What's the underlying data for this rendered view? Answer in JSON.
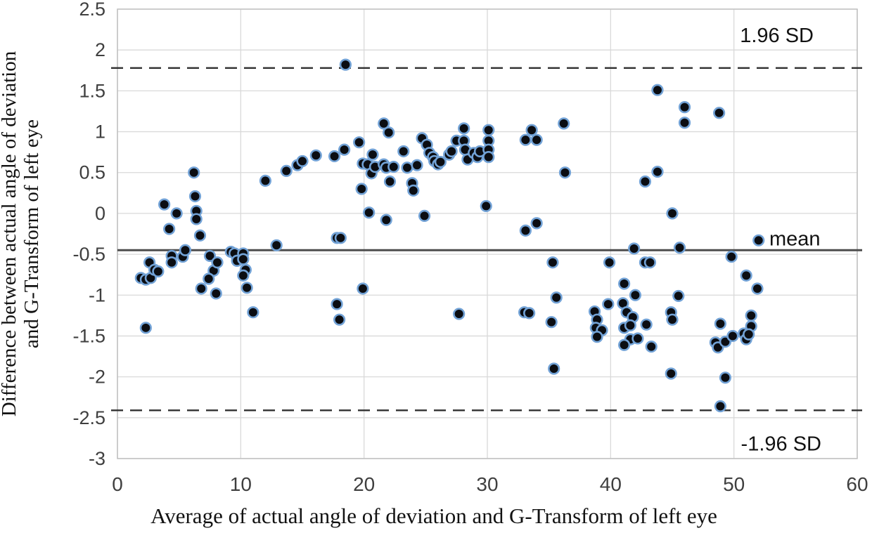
{
  "chart_data": {
    "type": "scatter",
    "title": "",
    "xlabel": "Average of actual angle of deviation and G-Transform of left eye",
    "ylabel": "Difference between actual angle of deviation and G-Transform of left eye",
    "ylabel_line1": "Difference between actual angle of deviation",
    "ylabel_line2": "and G-Transform of left eye",
    "xlim": [
      0,
      60
    ],
    "ylim": [
      -3,
      2.5
    ],
    "x_ticks": [
      0,
      10,
      20,
      30,
      40,
      50,
      60
    ],
    "y_ticks": [
      2.5,
      2,
      1.5,
      1,
      0.5,
      0,
      -0.5,
      -1,
      -1.5,
      -2,
      -2.5,
      -3
    ],
    "grid": true,
    "legend": "none",
    "colors": {
      "marker_fill": "#0b0d12",
      "marker_stroke": "#72a2d6",
      "gridline": "#d9d9d9",
      "plot_border": "#bfbfbf",
      "mean_line": "#4d4d4d",
      "loa_line": "#303030",
      "tick_text": "#3f3f3f",
      "label_text": "#121212"
    },
    "reference_lines": [
      {
        "label": "1.96 SD",
        "value": 1.78,
        "style": "dashed"
      },
      {
        "label": "mean",
        "value": -0.45,
        "style": "solid"
      },
      {
        "label": "-1.96 SD",
        "value": -2.41,
        "style": "dashed"
      }
    ],
    "points": [
      [
        1.9,
        -0.79
      ],
      [
        2.3,
        -0.81
      ],
      [
        2.7,
        -0.79
      ],
      [
        2.3,
        -1.4
      ],
      [
        2.6,
        -0.6
      ],
      [
        3.0,
        -0.69
      ],
      [
        3.3,
        -0.71
      ],
      [
        3.8,
        0.11
      ],
      [
        4.2,
        -0.19
      ],
      [
        4.4,
        -0.52
      ],
      [
        4.4,
        -0.6
      ],
      [
        4.8,
        0.0
      ],
      [
        5.3,
        -0.53
      ],
      [
        5.5,
        -0.45
      ],
      [
        6.2,
        0.5
      ],
      [
        6.3,
        0.21
      ],
      [
        6.4,
        0.03
      ],
      [
        6.4,
        -0.07
      ],
      [
        6.7,
        -0.27
      ],
      [
        6.8,
        -0.92
      ],
      [
        7.5,
        -0.52
      ],
      [
        7.8,
        -0.7
      ],
      [
        7.4,
        -0.8
      ],
      [
        8.1,
        -0.6
      ],
      [
        8.0,
        -0.98
      ],
      [
        9.2,
        -0.47
      ],
      [
        9.5,
        -0.49
      ],
      [
        9.7,
        -0.58
      ],
      [
        10.2,
        -0.49
      ],
      [
        10.2,
        -0.56
      ],
      [
        10.4,
        -0.69
      ],
      [
        10.2,
        -0.76
      ],
      [
        10.5,
        -0.91
      ],
      [
        11.0,
        -1.21
      ],
      [
        12.0,
        0.4
      ],
      [
        12.9,
        -0.39
      ],
      [
        13.7,
        0.52
      ],
      [
        14.6,
        0.59
      ],
      [
        15.0,
        0.64
      ],
      [
        16.1,
        0.71
      ],
      [
        17.6,
        0.7
      ],
      [
        18.4,
        0.78
      ],
      [
        18.5,
        1.82
      ],
      [
        17.8,
        -0.3
      ],
      [
        18.1,
        -0.3
      ],
      [
        17.8,
        -1.11
      ],
      [
        18.0,
        -1.3
      ],
      [
        19.6,
        0.87
      ],
      [
        19.8,
        0.3
      ],
      [
        19.9,
        0.61
      ],
      [
        19.9,
        -0.92
      ],
      [
        20.3,
        0.6
      ],
      [
        20.6,
        0.49
      ],
      [
        20.7,
        0.72
      ],
      [
        20.9,
        0.57
      ],
      [
        20.4,
        0.01
      ],
      [
        21.6,
        0.6
      ],
      [
        21.6,
        1.1
      ],
      [
        21.8,
        0.56
      ],
      [
        22.0,
        0.99
      ],
      [
        22.1,
        0.39
      ],
      [
        22.4,
        0.57
      ],
      [
        21.8,
        -0.08
      ],
      [
        23.2,
        0.76
      ],
      [
        23.5,
        0.56
      ],
      [
        23.9,
        0.37
      ],
      [
        24.0,
        0.28
      ],
      [
        24.3,
        0.59
      ],
      [
        24.7,
        0.92
      ],
      [
        25.1,
        0.84
      ],
      [
        25.3,
        0.74
      ],
      [
        25.6,
        0.69
      ],
      [
        25.7,
        0.64
      ],
      [
        26.0,
        0.6
      ],
      [
        26.2,
        0.63
      ],
      [
        24.9,
        -0.03
      ],
      [
        26.9,
        0.72
      ],
      [
        27.1,
        0.76
      ],
      [
        27.5,
        0.89
      ],
      [
        27.7,
        -1.23
      ],
      [
        28.1,
        1.04
      ],
      [
        28.1,
        0.89
      ],
      [
        28.2,
        0.78
      ],
      [
        28.4,
        0.66
      ],
      [
        28.9,
        0.74
      ],
      [
        29.2,
        0.69
      ],
      [
        29.4,
        0.76
      ],
      [
        29.9,
        0.09
      ],
      [
        30.1,
        1.02
      ],
      [
        30.1,
        0.89
      ],
      [
        30.1,
        0.78
      ],
      [
        30.1,
        0.69
      ],
      [
        33.1,
        0.9
      ],
      [
        33.6,
        1.02
      ],
      [
        34.0,
        0.9
      ],
      [
        33.1,
        -0.21
      ],
      [
        34.0,
        -0.12
      ],
      [
        33.0,
        -1.21
      ],
      [
        33.4,
        -1.22
      ],
      [
        35.3,
        -0.6
      ],
      [
        35.6,
        -1.03
      ],
      [
        35.2,
        -1.33
      ],
      [
        35.4,
        -1.9
      ],
      [
        36.2,
        1.1
      ],
      [
        36.3,
        0.5
      ],
      [
        38.7,
        -1.2
      ],
      [
        38.9,
        -1.3
      ],
      [
        38.8,
        -1.4
      ],
      [
        39.3,
        -1.43
      ],
      [
        38.9,
        -1.51
      ],
      [
        39.8,
        -1.11
      ],
      [
        39.9,
        -0.6
      ],
      [
        41.9,
        -0.43
      ],
      [
        42.8,
        -0.6
      ],
      [
        43.2,
        -0.6
      ],
      [
        41.1,
        -0.86
      ],
      [
        42.0,
        -1.0
      ],
      [
        41.0,
        -1.1
      ],
      [
        41.3,
        -1.21
      ],
      [
        41.8,
        -1.27
      ],
      [
        41.1,
        -1.4
      ],
      [
        41.6,
        -1.37
      ],
      [
        41.6,
        -1.54
      ],
      [
        42.2,
        -1.53
      ],
      [
        41.1,
        -1.61
      ],
      [
        42.9,
        -1.36
      ],
      [
        43.3,
        -1.63
      ],
      [
        42.8,
        0.39
      ],
      [
        43.8,
        0.51
      ],
      [
        43.8,
        1.51
      ],
      [
        44.9,
        -1.21
      ],
      [
        45.0,
        -1.3
      ],
      [
        44.9,
        -1.96
      ],
      [
        45.0,
        0.0
      ],
      [
        45.6,
        -0.42
      ],
      [
        45.5,
        -1.01
      ],
      [
        46.0,
        1.3
      ],
      [
        46.0,
        1.11
      ],
      [
        48.8,
        1.23
      ],
      [
        48.9,
        -1.35
      ],
      [
        48.5,
        -1.58
      ],
      [
        48.7,
        -1.64
      ],
      [
        49.3,
        -1.57
      ],
      [
        49.9,
        -1.5
      ],
      [
        49.3,
        -2.01
      ],
      [
        48.9,
        -2.36
      ],
      [
        49.8,
        -0.53
      ],
      [
        50.8,
        -1.47
      ],
      [
        51.0,
        -1.54
      ],
      [
        51.4,
        -1.25
      ],
      [
        51.4,
        -1.38
      ],
      [
        51.2,
        -1.48
      ],
      [
        51.0,
        -0.76
      ],
      [
        51.9,
        -0.92
      ],
      [
        52.0,
        -0.33
      ]
    ]
  }
}
